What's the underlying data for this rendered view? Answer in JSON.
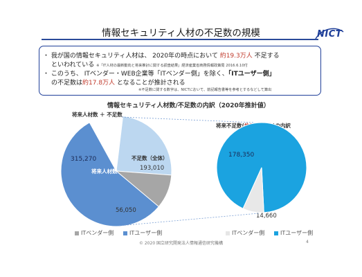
{
  "slide": {
    "title": "情報セキュリティ人材の不足数の規模",
    "logo_text": "NICT",
    "footer": "© 2020 国立研究開発法人情報通信研究機構",
    "page_number": "4"
  },
  "bullets": {
    "b1_line1_a": "・ 我が国の情報セキュリティ人材は、 2020年の時点において ",
    "b1_line1_red": "約19.3万人",
    "b1_line1_b": " 不足する",
    "b1_line2_a": "といわれている ",
    "b1_line2_note": "※「IT人材の最新動向と将来推計に関する調査結果」経済産業省商務情報政策局 2016.6.10付",
    "b2_line1_a": "・ このうち、 ITベンダー・WEB企業等「ITベンダー側」を除く、",
    "b2_line1_bold": "「ITユーザー側」",
    "b2_line2_a": "の不足数は",
    "b2_line2_red": "約17.8万人",
    "b2_line2_b": " となることが推計される",
    "note": "※不足数に関する数字は、NICTにおいて、前記報告書等を参考とするなどして算出"
  },
  "chart_data": [
    {
      "type": "pie",
      "title": "情報セキュリティ人材数/不足数の内訳（2020年推計値）",
      "subtitle": "将来人材数 ＋ 不足数",
      "slices": [
        {
          "label": "将来人材数",
          "value": 315270,
          "color": "#5b8fd0"
        },
        {
          "label": "不足数（全体）",
          "value": 193010,
          "color": "#bcd7f0"
        },
        {
          "label": "",
          "value": 56050,
          "color": "#a6a6a6"
        }
      ],
      "value_labels": [
        "315,270",
        "193,010",
        "56,050"
      ]
    },
    {
      "type": "pie",
      "title": "将来不足数(約19.3万人)の内訳",
      "slices": [
        {
          "label": "ITユーザー側",
          "value": 178350,
          "color": "#1ba3e0"
        },
        {
          "label": "ITベンダー側",
          "value": 14660,
          "color": "#e8e8e8"
        }
      ],
      "value_labels": [
        "178,350",
        "14,660"
      ]
    }
  ],
  "labels": {
    "left_future": "将来人材数",
    "left_shortage": "不足数（全体）",
    "right_title_a": "将来不足数(",
    "right_title_red": "約19.3万人",
    "right_title_b": ")の内訳"
  },
  "legend_left": [
    {
      "label": "ITベンダー側",
      "color": "#a6a6a6"
    },
    {
      "label": "ITユーザー側",
      "color": "#5b8fd0"
    }
  ],
  "legend_right": [
    {
      "label": "ITベンダー側",
      "color": "#e6e6e6"
    },
    {
      "label": "ITユーザー側",
      "color": "#1ba3e0"
    }
  ]
}
